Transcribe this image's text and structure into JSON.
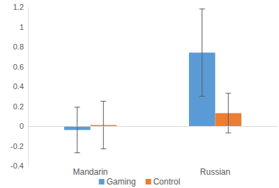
{
  "chart_data": {
    "type": "bar",
    "categories": [
      "Mandarin",
      "Russian"
    ],
    "series": [
      {
        "name": "Gaming",
        "color": "#5b9bd5",
        "values": [
          -0.04,
          0.74
        ],
        "errors": [
          0.23,
          0.44
        ]
      },
      {
        "name": "Control",
        "color": "#ed7d31",
        "values": [
          0.01,
          0.13
        ],
        "errors": [
          0.24,
          0.2
        ]
      }
    ],
    "ylim": [
      -0.4,
      1.2
    ],
    "yticks": [
      -0.4,
      -0.2,
      0,
      0.2,
      0.4,
      0.6,
      0.8,
      1,
      1.2
    ],
    "grid": false,
    "legend": "bottom"
  }
}
